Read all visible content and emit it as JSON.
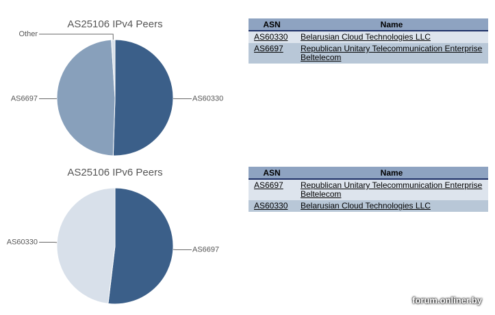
{
  "chart_data": [
    {
      "type": "pie",
      "title": "AS25106 IPv4 Peers",
      "categories": [
        "AS60330",
        "AS6697",
        "Other"
      ],
      "values": [
        50.5,
        48.5,
        1
      ],
      "colors": [
        "#3b5f89",
        "#88a0bb",
        "#d8e0ea"
      ]
    },
    {
      "type": "pie",
      "title": "AS25106 IPv6 Peers",
      "categories": [
        "AS6697",
        "AS60330"
      ],
      "values": [
        51.9,
        48.1
      ],
      "colors": [
        "#3b5f89",
        "#d8e0ea"
      ]
    }
  ],
  "tables": [
    {
      "header": [
        "ASN",
        "Name"
      ],
      "rows": [
        [
          "AS60330",
          "Belarusian Cloud Technologies LLC"
        ],
        [
          "AS6697",
          "Republican Unitary Telecommunication Enterprise Beltelecom"
        ]
      ]
    },
    {
      "header": [
        "ASN",
        "Name"
      ],
      "rows": [
        [
          "AS6697",
          "Republican Unitary Telecommunication Enterprise Beltelecom"
        ],
        [
          "AS60330",
          "Belarusian Cloud Technologies LLC"
        ]
      ]
    }
  ],
  "watermark": "forum.onliner.by"
}
